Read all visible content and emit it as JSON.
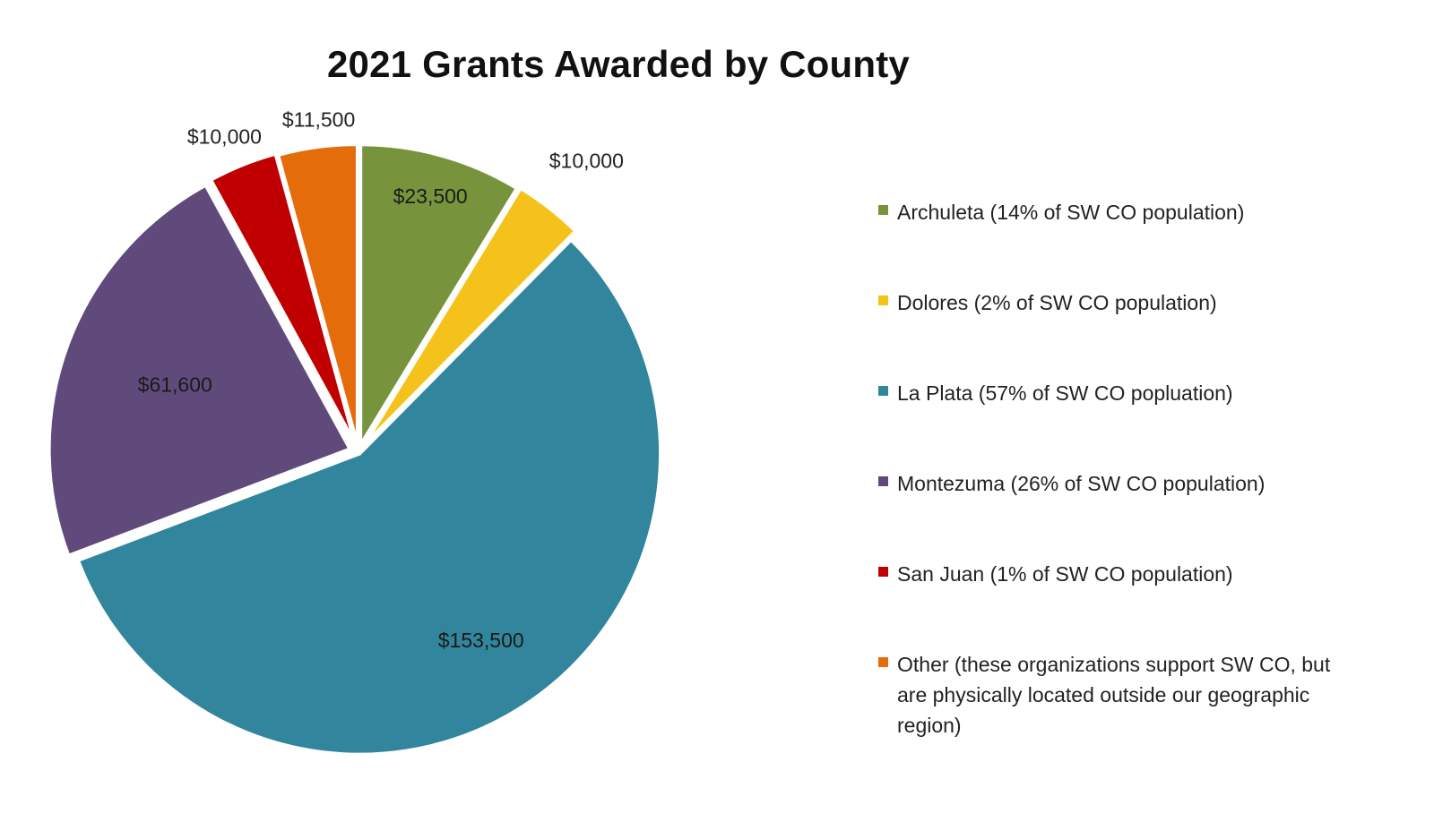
{
  "chart_data": {
    "type": "pie",
    "title": "2021 Grants Awarded by County",
    "slices": [
      {
        "name": "Archuleta (14% of SW CO population)",
        "value": 23500,
        "label": "$23,500",
        "color": "#77933C"
      },
      {
        "name": "Dolores (2% of SW CO population)",
        "value": 10000,
        "label": "$10,000",
        "color": "#F5C21B"
      },
      {
        "name": "La Plata (57% of SW CO popluation)",
        "value": 153500,
        "label": "$153,500",
        "color": "#31859C"
      },
      {
        "name": "Montezuma (26% of SW CO population)",
        "value": 61600,
        "label": "$61,600",
        "color": "#604A7B"
      },
      {
        "name": "San Juan (1% of SW CO population)",
        "value": 10000,
        "label": "$10,000",
        "color": "#C00000"
      },
      {
        "name": "Other (these organizations support SW CO, but are physically located outside our geographic region)",
        "value": 11500,
        "label": "$11,500",
        "color": "#E46C0A"
      }
    ],
    "legend_position": "right"
  }
}
